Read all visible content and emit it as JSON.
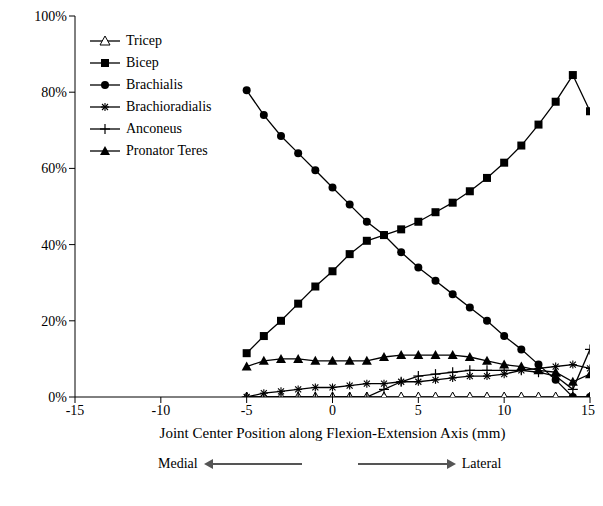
{
  "chart_data": {
    "type": "line",
    "x_label": "Joint Center Position along Flexion-Extension Axis (mm)",
    "annotations": [
      "Medial",
      "Lateral"
    ],
    "x": [
      -5,
      -4,
      -3,
      -2,
      -1,
      0,
      1,
      2,
      3,
      4,
      5,
      6,
      7,
      8,
      9,
      10,
      11,
      12,
      13,
      14,
      15
    ],
    "series": [
      {
        "name": "Tricep",
        "color": "#000000",
        "marker": "triangle-open",
        "values": [
          0,
          0,
          0,
          0,
          0,
          0,
          0,
          0,
          0,
          0,
          0,
          0,
          0,
          0,
          0,
          0,
          0,
          0,
          0,
          0,
          0
        ]
      },
      {
        "name": "Bicep",
        "color": "#000000",
        "marker": "square",
        "values": [
          11.5,
          16,
          20,
          24.5,
          29,
          33,
          37.5,
          41,
          42.5,
          44,
          46,
          48.5,
          51,
          54,
          57.5,
          61.5,
          66,
          71.5,
          77.5,
          84.5,
          75
        ]
      },
      {
        "name": "Brachialis",
        "color": "#000000",
        "marker": "circle",
        "values": [
          80.5,
          74,
          68.5,
          64,
          59.5,
          55,
          50.5,
          46,
          42.5,
          38,
          34,
          30.5,
          27,
          23.5,
          20,
          16,
          12.5,
          8.5,
          4.5,
          0,
          0
        ]
      },
      {
        "name": "Brachioradialis",
        "color": "#000000",
        "marker": "star",
        "values": [
          0,
          1,
          1.5,
          2,
          2.5,
          2.5,
          3,
          3.5,
          3.5,
          4,
          4,
          4.5,
          5,
          5.5,
          5.5,
          6,
          7,
          7.5,
          8,
          8.5,
          7.5
        ]
      },
      {
        "name": "Anconeus",
        "color": "#000000",
        "marker": "plus",
        "values": [
          0,
          0,
          0,
          0,
          0,
          0,
          0,
          0,
          2,
          4,
          5.5,
          6,
          6.5,
          7,
          7,
          7,
          7,
          6.5,
          5.5,
          2,
          12.5
        ]
      },
      {
        "name": "Pronator Teres",
        "color": "#000000",
        "marker": "triangle",
        "values": [
          8,
          9.5,
          10,
          10,
          9.5,
          9.5,
          9.5,
          9.5,
          10.5,
          11,
          11,
          11,
          11,
          10.5,
          9.5,
          8.5,
          8,
          7,
          6.5,
          4,
          6
        ]
      }
    ],
    "xlim": [
      -15,
      15
    ],
    "xticks": [
      -15,
      -10,
      -5,
      0,
      5,
      10,
      15
    ],
    "ylim": [
      0,
      100
    ],
    "yticks": [
      {
        "value": 0,
        "label": "0%"
      },
      {
        "value": 20,
        "label": "20%"
      },
      {
        "value": 40,
        "label": "40%"
      },
      {
        "value": 60,
        "label": "60%"
      },
      {
        "value": 80,
        "label": "80%"
      },
      {
        "value": 100,
        "label": "100%"
      }
    ],
    "grid": false,
    "legend": "upper left"
  }
}
